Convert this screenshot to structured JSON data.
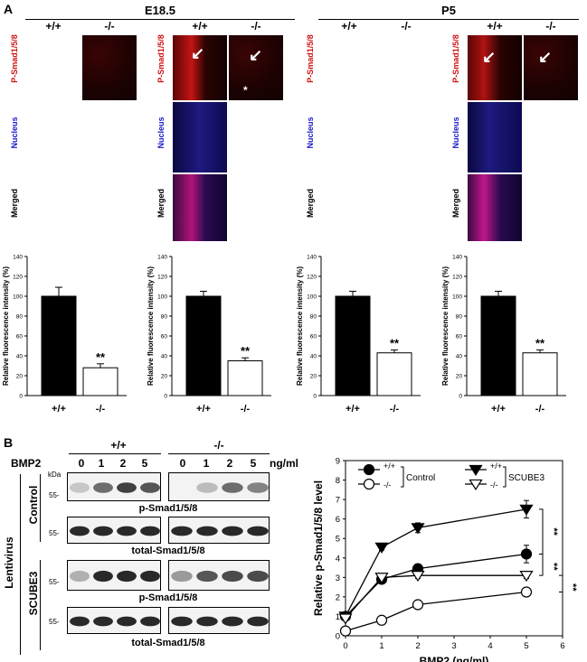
{
  "panel_a": {
    "letter": "A",
    "stages": [
      "E18.5",
      "P5"
    ],
    "genotypes": [
      "+/+",
      "-/-"
    ],
    "row_labels": [
      "P-Smad1/5/8",
      "Nucleus",
      "Merged"
    ],
    "asterisk_mark": "*",
    "arrow_mark": "↙"
  },
  "panel_b": {
    "letter": "B",
    "bmp2_label": "BMP2",
    "concentrations": [
      "0",
      "1",
      "2",
      "5"
    ],
    "unit": "ng/ml",
    "kda_label": "kDa",
    "marker": "55-",
    "lentivirus_label": "Lentivirus",
    "control_label": "Control",
    "scube3_label": "SCUBE3",
    "p_smad_label": "p-Smad1/5/8",
    "total_smad_label": "total-Smad1/5/8",
    "genotypes": [
      "+/+",
      "-/-"
    ]
  },
  "chart_data": [
    {
      "type": "bar",
      "categories": [
        "+/+",
        "-/-"
      ],
      "values": [
        100,
        28
      ],
      "errors": [
        9,
        4
      ],
      "ylabel": "Relative fluorescence intensity (%)",
      "ylim": [
        0,
        140
      ],
      "yticks": [
        "0",
        "20",
        "40",
        "60",
        "80",
        "100",
        "120",
        "140"
      ],
      "annotation": "**"
    },
    {
      "type": "bar",
      "categories": [
        "+/+",
        "-/-"
      ],
      "values": [
        100,
        35
      ],
      "errors": [
        5,
        3
      ],
      "ylabel": "Relative fluorescence intensity (%)",
      "ylim": [
        0,
        140
      ],
      "yticks": [
        "0",
        "20",
        "40",
        "60",
        "80",
        "100",
        "120",
        "140"
      ],
      "annotation": "**"
    },
    {
      "type": "bar",
      "categories": [
        "+/+",
        "-/-"
      ],
      "values": [
        100,
        43
      ],
      "errors": [
        5,
        3
      ],
      "ylabel": "Relative fluorescence intensity (%)",
      "ylim": [
        0,
        140
      ],
      "yticks": [
        "0",
        "20",
        "40",
        "60",
        "80",
        "100",
        "120",
        "140"
      ],
      "annotation": "**"
    },
    {
      "type": "bar",
      "categories": [
        "+/+",
        "-/-"
      ],
      "values": [
        100,
        43
      ],
      "errors": [
        5,
        3
      ],
      "ylabel": "Relative fluorescence intensity (%)",
      "ylim": [
        0,
        140
      ],
      "yticks": [
        "0",
        "20",
        "40",
        "60",
        "80",
        "100",
        "120",
        "140"
      ],
      "annotation": "**"
    },
    {
      "type": "line",
      "x": [
        0,
        1,
        2,
        5
      ],
      "xlabel": "BMP2 (ng/ml)",
      "ylabel": "Relative p-Smad1/5/8 level",
      "xlim": [
        0,
        6
      ],
      "ylim": [
        0,
        9
      ],
      "xticks": [
        "0",
        "1",
        "2",
        "3",
        "4",
        "5",
        "6"
      ],
      "yticks": [
        "0",
        "1",
        "2",
        "3",
        "4",
        "5",
        "6",
        "7",
        "8",
        "9"
      ],
      "series": [
        {
          "name": "+/+ Control",
          "genotype": "+/+",
          "values": [
            1.0,
            2.9,
            3.45,
            4.2
          ],
          "errors": [
            0.1,
            0.2,
            0.2,
            0.45
          ],
          "marker": "circle-filled"
        },
        {
          "name": "-/- Control",
          "genotype": "-/-",
          "values": [
            0.25,
            0.8,
            1.6,
            2.25
          ],
          "errors": [
            0.05,
            0.1,
            0.15,
            0.2
          ],
          "marker": "circle-open"
        },
        {
          "name": "+/+ SCUBE3",
          "genotype": "+/+",
          "values": [
            1.0,
            4.55,
            5.55,
            6.5
          ],
          "errors": [
            0.1,
            0.15,
            0.25,
            0.45
          ],
          "marker": "triangle-filled"
        },
        {
          "name": "-/- SCUBE3",
          "genotype": "-/-",
          "values": [
            0.9,
            3.0,
            3.1,
            3.1
          ],
          "errors": [
            0.1,
            0.15,
            0.15,
            0.15
          ],
          "marker": "triangle-open"
        }
      ],
      "legend_group_control": "Control",
      "legend_group_scube3": "SCUBE3",
      "significance": [
        "**",
        "**",
        "**"
      ]
    }
  ]
}
